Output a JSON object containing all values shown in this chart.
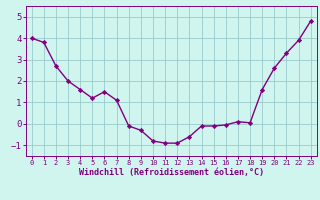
{
  "x": [
    0,
    1,
    2,
    3,
    4,
    5,
    6,
    7,
    8,
    9,
    10,
    11,
    12,
    13,
    14,
    15,
    16,
    17,
    18,
    19,
    20,
    21,
    22,
    23
  ],
  "y": [
    4.0,
    3.8,
    2.7,
    2.0,
    1.6,
    1.2,
    1.5,
    1.1,
    -0.1,
    -0.3,
    -0.8,
    -0.9,
    -0.9,
    -0.6,
    -0.1,
    -0.1,
    -0.05,
    0.1,
    0.05,
    1.6,
    2.6,
    3.3,
    3.9,
    4.8
  ],
  "line_color": "#800080",
  "marker": "D",
  "markersize": 2.2,
  "linewidth": 1.0,
  "bg_color": "#cff5ee",
  "grid_color": "#99cccc",
  "xlabel": "Windchill (Refroidissement éolien,°C)",
  "xlabel_color": "#800080",
  "tick_color": "#800080",
  "yticks": [
    -1,
    0,
    1,
    2,
    3,
    4,
    5
  ],
  "ylim": [
    -1.5,
    5.5
  ],
  "xlim": [
    -0.5,
    23.5
  ],
  "xtick_fontsize": 5.0,
  "ytick_fontsize": 6.5,
  "xlabel_fontsize": 6.0
}
